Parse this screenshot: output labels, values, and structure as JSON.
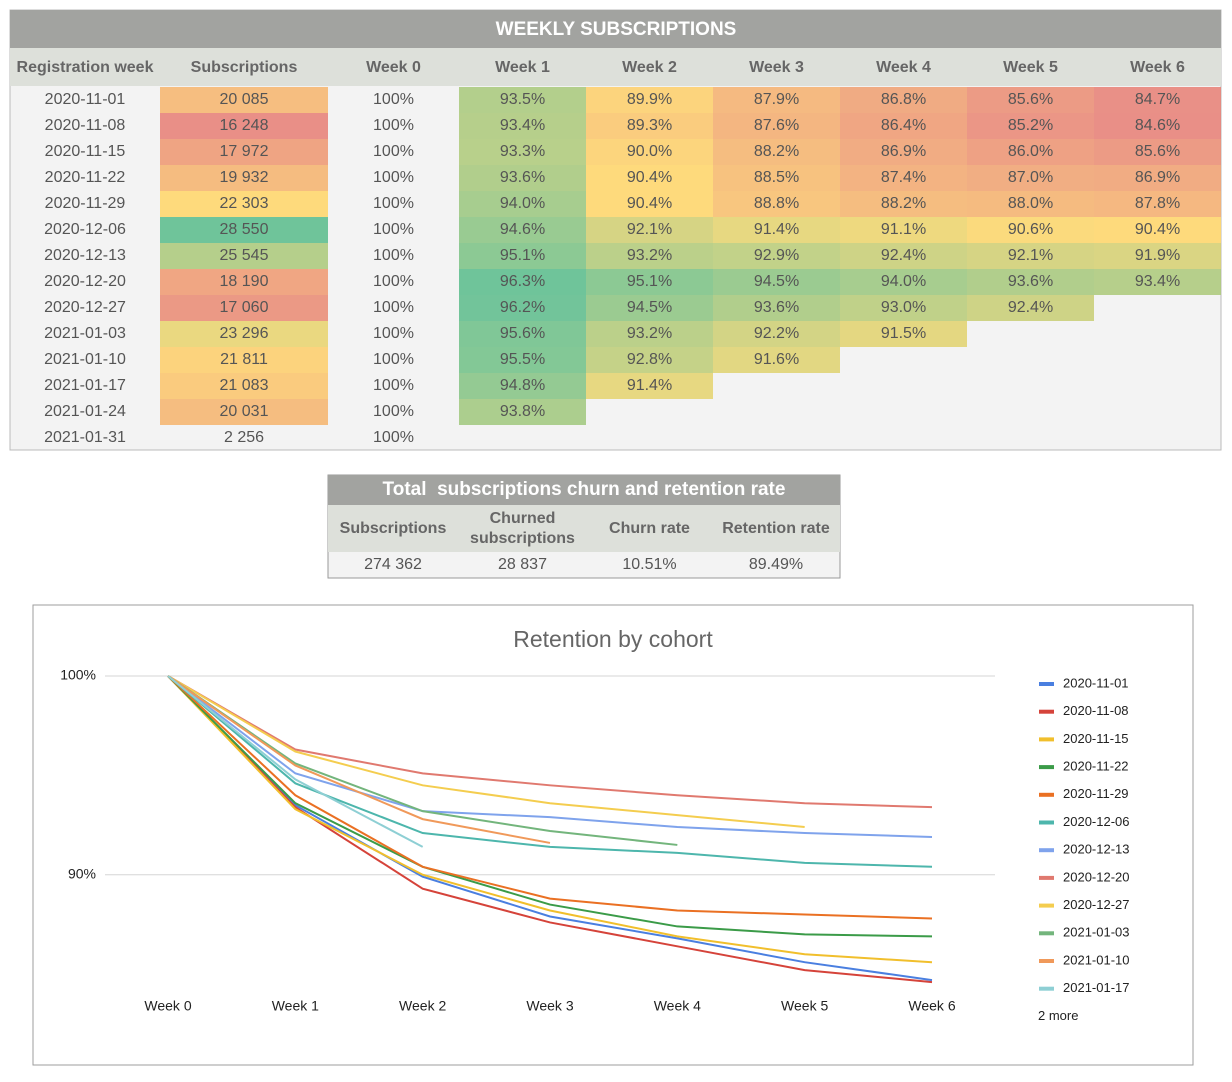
{
  "table": {
    "title": "WEEKLY SUBSCRIPTIONS",
    "header": [
      "Registration week",
      "Subscriptions",
      "Week 0",
      "Week 1",
      "Week 2",
      "Week 3",
      "Week 4",
      "Week 5",
      "Week 6"
    ],
    "rows": [
      [
        "2020-11-01",
        "20 085",
        "100%",
        "93.5%",
        "89.9%",
        "87.9%",
        "86.8%",
        "85.6%",
        "84.7%"
      ],
      [
        "2020-11-08",
        "16 248",
        "100%",
        "93.4%",
        "89.3%",
        "87.6%",
        "86.4%",
        "85.2%",
        "84.6%"
      ],
      [
        "2020-11-15",
        "17 972",
        "100%",
        "93.3%",
        "90.0%",
        "88.2%",
        "86.9%",
        "86.0%",
        "85.6%"
      ],
      [
        "2020-11-22",
        "19 932",
        "100%",
        "93.6%",
        "90.4%",
        "88.5%",
        "87.4%",
        "87.0%",
        "86.9%"
      ],
      [
        "2020-11-29",
        "22 303",
        "100%",
        "94.0%",
        "90.4%",
        "88.8%",
        "88.2%",
        "88.0%",
        "87.8%"
      ],
      [
        "2020-12-06",
        "28 550",
        "100%",
        "94.6%",
        "92.1%",
        "91.4%",
        "91.1%",
        "90.6%",
        "90.4%"
      ],
      [
        "2020-12-13",
        "25 545",
        "100%",
        "95.1%",
        "93.2%",
        "92.9%",
        "92.4%",
        "92.1%",
        "91.9%"
      ],
      [
        "2020-12-20",
        "18 190",
        "100%",
        "96.3%",
        "95.1%",
        "94.5%",
        "94.0%",
        "93.6%",
        "93.4%"
      ],
      [
        "2020-12-27",
        "17 060",
        "100%",
        "96.2%",
        "94.5%",
        "93.6%",
        "93.0%",
        "92.4%"
      ],
      [
        "2021-01-03",
        "23 296",
        "100%",
        "95.6%",
        "93.2%",
        "92.2%",
        "91.5%"
      ],
      [
        "2021-01-10",
        "21 811",
        "100%",
        "95.5%",
        "92.8%",
        "91.6%"
      ],
      [
        "2021-01-17",
        "21 083",
        "100%",
        "94.8%",
        "91.4%"
      ],
      [
        "2021-01-24",
        "20 031",
        "100%",
        "93.8%"
      ],
      [
        "2021-01-31",
        "2 256",
        "100%"
      ]
    ],
    "heatmap_colors": [
      "#e67c73",
      "#ffd666",
      "#57bb8a"
    ]
  },
  "summary": {
    "title": "Total  subscriptions churn and retention rate",
    "header": [
      "Subscriptions",
      "Churned subscriptions",
      "Churn rate",
      "Retention rate"
    ],
    "row": [
      "274 362",
      "28 837",
      "10.51%",
      "89.49%"
    ]
  },
  "chart_data": {
    "type": "line",
    "title": "Retention by cohort",
    "categories": [
      "Week 0",
      "Week 1",
      "Week 2",
      "Week 3",
      "Week 4",
      "Week 5",
      "Week 6"
    ],
    "ylim": [
      84,
      100
    ],
    "yticks": [
      {
        "value": 90,
        "label": "90%"
      },
      {
        "value": 100,
        "label": "100%"
      }
    ],
    "grid": true,
    "legend": "right",
    "legend_more": "2 more",
    "series": [
      {
        "name": "2020-11-01",
        "color": "#4a7fe0",
        "values": [
          100,
          93.5,
          89.9,
          87.9,
          86.8,
          85.6,
          84.7
        ]
      },
      {
        "name": "2020-11-08",
        "color": "#d5433a",
        "values": [
          100,
          93.4,
          89.3,
          87.6,
          86.4,
          85.2,
          84.6
        ]
      },
      {
        "name": "2020-11-15",
        "color": "#f1bf2c",
        "values": [
          100,
          93.3,
          90.0,
          88.2,
          86.9,
          86.0,
          85.6
        ]
      },
      {
        "name": "2020-11-22",
        "color": "#3b9b48",
        "values": [
          100,
          93.6,
          90.4,
          88.5,
          87.4,
          87.0,
          86.9
        ]
      },
      {
        "name": "2020-11-29",
        "color": "#ea7023",
        "values": [
          100,
          94.0,
          90.4,
          88.8,
          88.2,
          88.0,
          87.8
        ]
      },
      {
        "name": "2020-12-06",
        "color": "#4db6ac",
        "values": [
          100,
          94.6,
          92.1,
          91.4,
          91.1,
          90.6,
          90.4
        ]
      },
      {
        "name": "2020-12-13",
        "color": "#7fa3ec",
        "values": [
          100,
          95.1,
          93.2,
          92.9,
          92.4,
          92.1,
          91.9
        ]
      },
      {
        "name": "2020-12-20",
        "color": "#e0796f",
        "values": [
          100,
          96.3,
          95.1,
          94.5,
          94.0,
          93.6,
          93.4
        ]
      },
      {
        "name": "2020-12-27",
        "color": "#f4cd4f",
        "values": [
          100,
          96.2,
          94.5,
          93.6,
          93.0,
          92.4,
          null
        ]
      },
      {
        "name": "2021-01-03",
        "color": "#73b57c",
        "values": [
          100,
          95.6,
          93.2,
          92.2,
          91.5,
          null,
          null
        ]
      },
      {
        "name": "2021-01-10",
        "color": "#f0995a",
        "values": [
          100,
          95.5,
          92.8,
          91.6,
          null,
          null,
          null
        ]
      },
      {
        "name": "2021-01-17",
        "color": "#8ecfd4",
        "values": [
          100,
          94.8,
          91.4,
          null,
          null,
          null,
          null
        ]
      }
    ]
  }
}
